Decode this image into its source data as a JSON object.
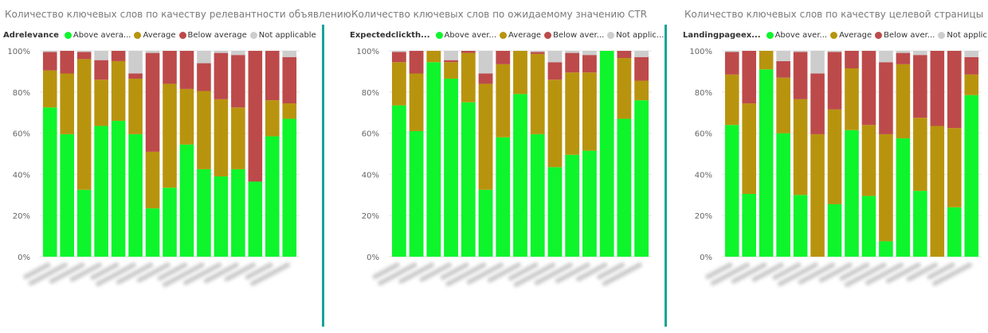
{
  "colors": {
    "above": "#0ef52c",
    "average": "#b8940e",
    "below": "#bd4a4a",
    "na": "#cdcdcd",
    "separator": "#17a398",
    "grid": "#e6e6e6"
  },
  "legend": {
    "above": "Above avera...",
    "average": "Average",
    "below": "Below average",
    "na": "Not applicable"
  },
  "legend_short": {
    "above": "Above aver...",
    "average": "Average",
    "below": "Below aver...",
    "na": "Not applic..."
  },
  "panels": [
    {
      "title": "Количество ключевых слов по качеству релевантности объявлению",
      "legend_title": "Adrelevance"
    },
    {
      "title": "Количество ключевых слов по ожидаемому значению CTR",
      "legend_title": "Expectedclickth..."
    },
    {
      "title": "Количество ключевых слов по качеству целевой страницы",
      "legend_title": "Landingpageex..."
    }
  ],
  "chart_data": [
    {
      "type": "bar",
      "stacked": "100%",
      "title": "Количество ключевых слов по качеству релевантности объявлению",
      "legend_title": "Adrelevance",
      "ylim": [
        0,
        100
      ],
      "yticks": [
        "0%",
        "20%",
        "40%",
        "60%",
        "80%",
        "100%"
      ],
      "grid": true,
      "legend_position": "top-left",
      "series": [
        {
          "name": "Above average",
          "values": [
            72.5,
            59.5,
            32.5,
            63.5,
            66.0,
            59.5,
            23.5,
            33.5,
            54.5,
            42.5,
            39.0,
            42.5,
            36.5,
            58.5,
            67.0
          ]
        },
        {
          "name": "Average",
          "values": [
            18.0,
            29.5,
            63.5,
            22.5,
            29.0,
            27.0,
            27.5,
            50.5,
            27.0,
            38.0,
            37.5,
            30.0,
            0.0,
            17.5,
            7.5
          ]
        },
        {
          "name": "Below average",
          "values": [
            9.0,
            11.0,
            3.5,
            9.5,
            5.0,
            2.5,
            48.0,
            16.0,
            18.5,
            13.5,
            22.5,
            25.5,
            63.5,
            24.0,
            22.5
          ]
        },
        {
          "name": "Not applicable",
          "values": [
            0.5,
            0.0,
            0.5,
            4.5,
            0.0,
            11.0,
            1.0,
            0.0,
            0.0,
            6.0,
            1.0,
            2.0,
            0.0,
            0.0,
            3.0
          ]
        }
      ]
    },
    {
      "type": "bar",
      "stacked": "100%",
      "title": "Количество ключевых слов по ожидаемому значению CTR",
      "legend_title": "Expectedclickth...",
      "ylim": [
        0,
        100
      ],
      "yticks": [
        "0%",
        "20%",
        "40%",
        "60%",
        "80%",
        "100%"
      ],
      "grid": true,
      "legend_position": "top-left",
      "series": [
        {
          "name": "Above average",
          "values": [
            73.5,
            61.0,
            94.5,
            86.5,
            75.0,
            32.5,
            58.0,
            79.0,
            59.5,
            43.5,
            49.5,
            51.5,
            100.0,
            67.0,
            76.0
          ]
        },
        {
          "name": "Average",
          "values": [
            21.0,
            28.0,
            5.5,
            8.0,
            24.0,
            51.5,
            35.5,
            21.0,
            39.0,
            42.5,
            40.0,
            38.0,
            0.0,
            29.5,
            9.5
          ]
        },
        {
          "name": "Below average",
          "values": [
            5.0,
            11.0,
            0.0,
            1.0,
            1.0,
            5.0,
            6.5,
            0.0,
            1.0,
            8.5,
            9.5,
            8.5,
            0.0,
            3.5,
            11.5
          ]
        },
        {
          "name": "Not applicable",
          "values": [
            0.5,
            0.0,
            0.0,
            4.5,
            0.0,
            11.0,
            0.0,
            0.0,
            0.5,
            5.5,
            1.0,
            2.0,
            0.0,
            0.0,
            3.0
          ]
        }
      ]
    },
    {
      "type": "bar",
      "stacked": "100%",
      "title": "Количество ключевых слов по качеству целевой страницы",
      "legend_title": "Landingpageex...",
      "ylim": [
        0,
        100
      ],
      "yticks": [
        "0%",
        "20%",
        "40%",
        "60%",
        "80%",
        "100%"
      ],
      "grid": true,
      "legend_position": "top-left",
      "series": [
        {
          "name": "Above average",
          "values": [
            64.0,
            30.5,
            91.0,
            60.0,
            30.0,
            0.0,
            25.5,
            61.5,
            29.5,
            7.5,
            57.5,
            32.0,
            0.0,
            24.0,
            78.5
          ]
        },
        {
          "name": "Average",
          "values": [
            24.5,
            44.0,
            9.0,
            27.0,
            46.5,
            59.5,
            46.0,
            30.0,
            34.5,
            52.0,
            36.0,
            35.5,
            63.5,
            38.5,
            10.0
          ]
        },
        {
          "name": "Below average",
          "values": [
            11.0,
            25.5,
            0.0,
            8.0,
            23.0,
            29.5,
            28.0,
            8.5,
            36.0,
            35.0,
            5.5,
            30.5,
            36.5,
            37.5,
            8.5
          ]
        },
        {
          "name": "Not applicable",
          "values": [
            0.5,
            0.0,
            0.0,
            5.0,
            0.5,
            11.0,
            0.5,
            0.0,
            0.0,
            5.5,
            1.0,
            2.0,
            0.0,
            0.0,
            3.0
          ]
        }
      ]
    }
  ]
}
